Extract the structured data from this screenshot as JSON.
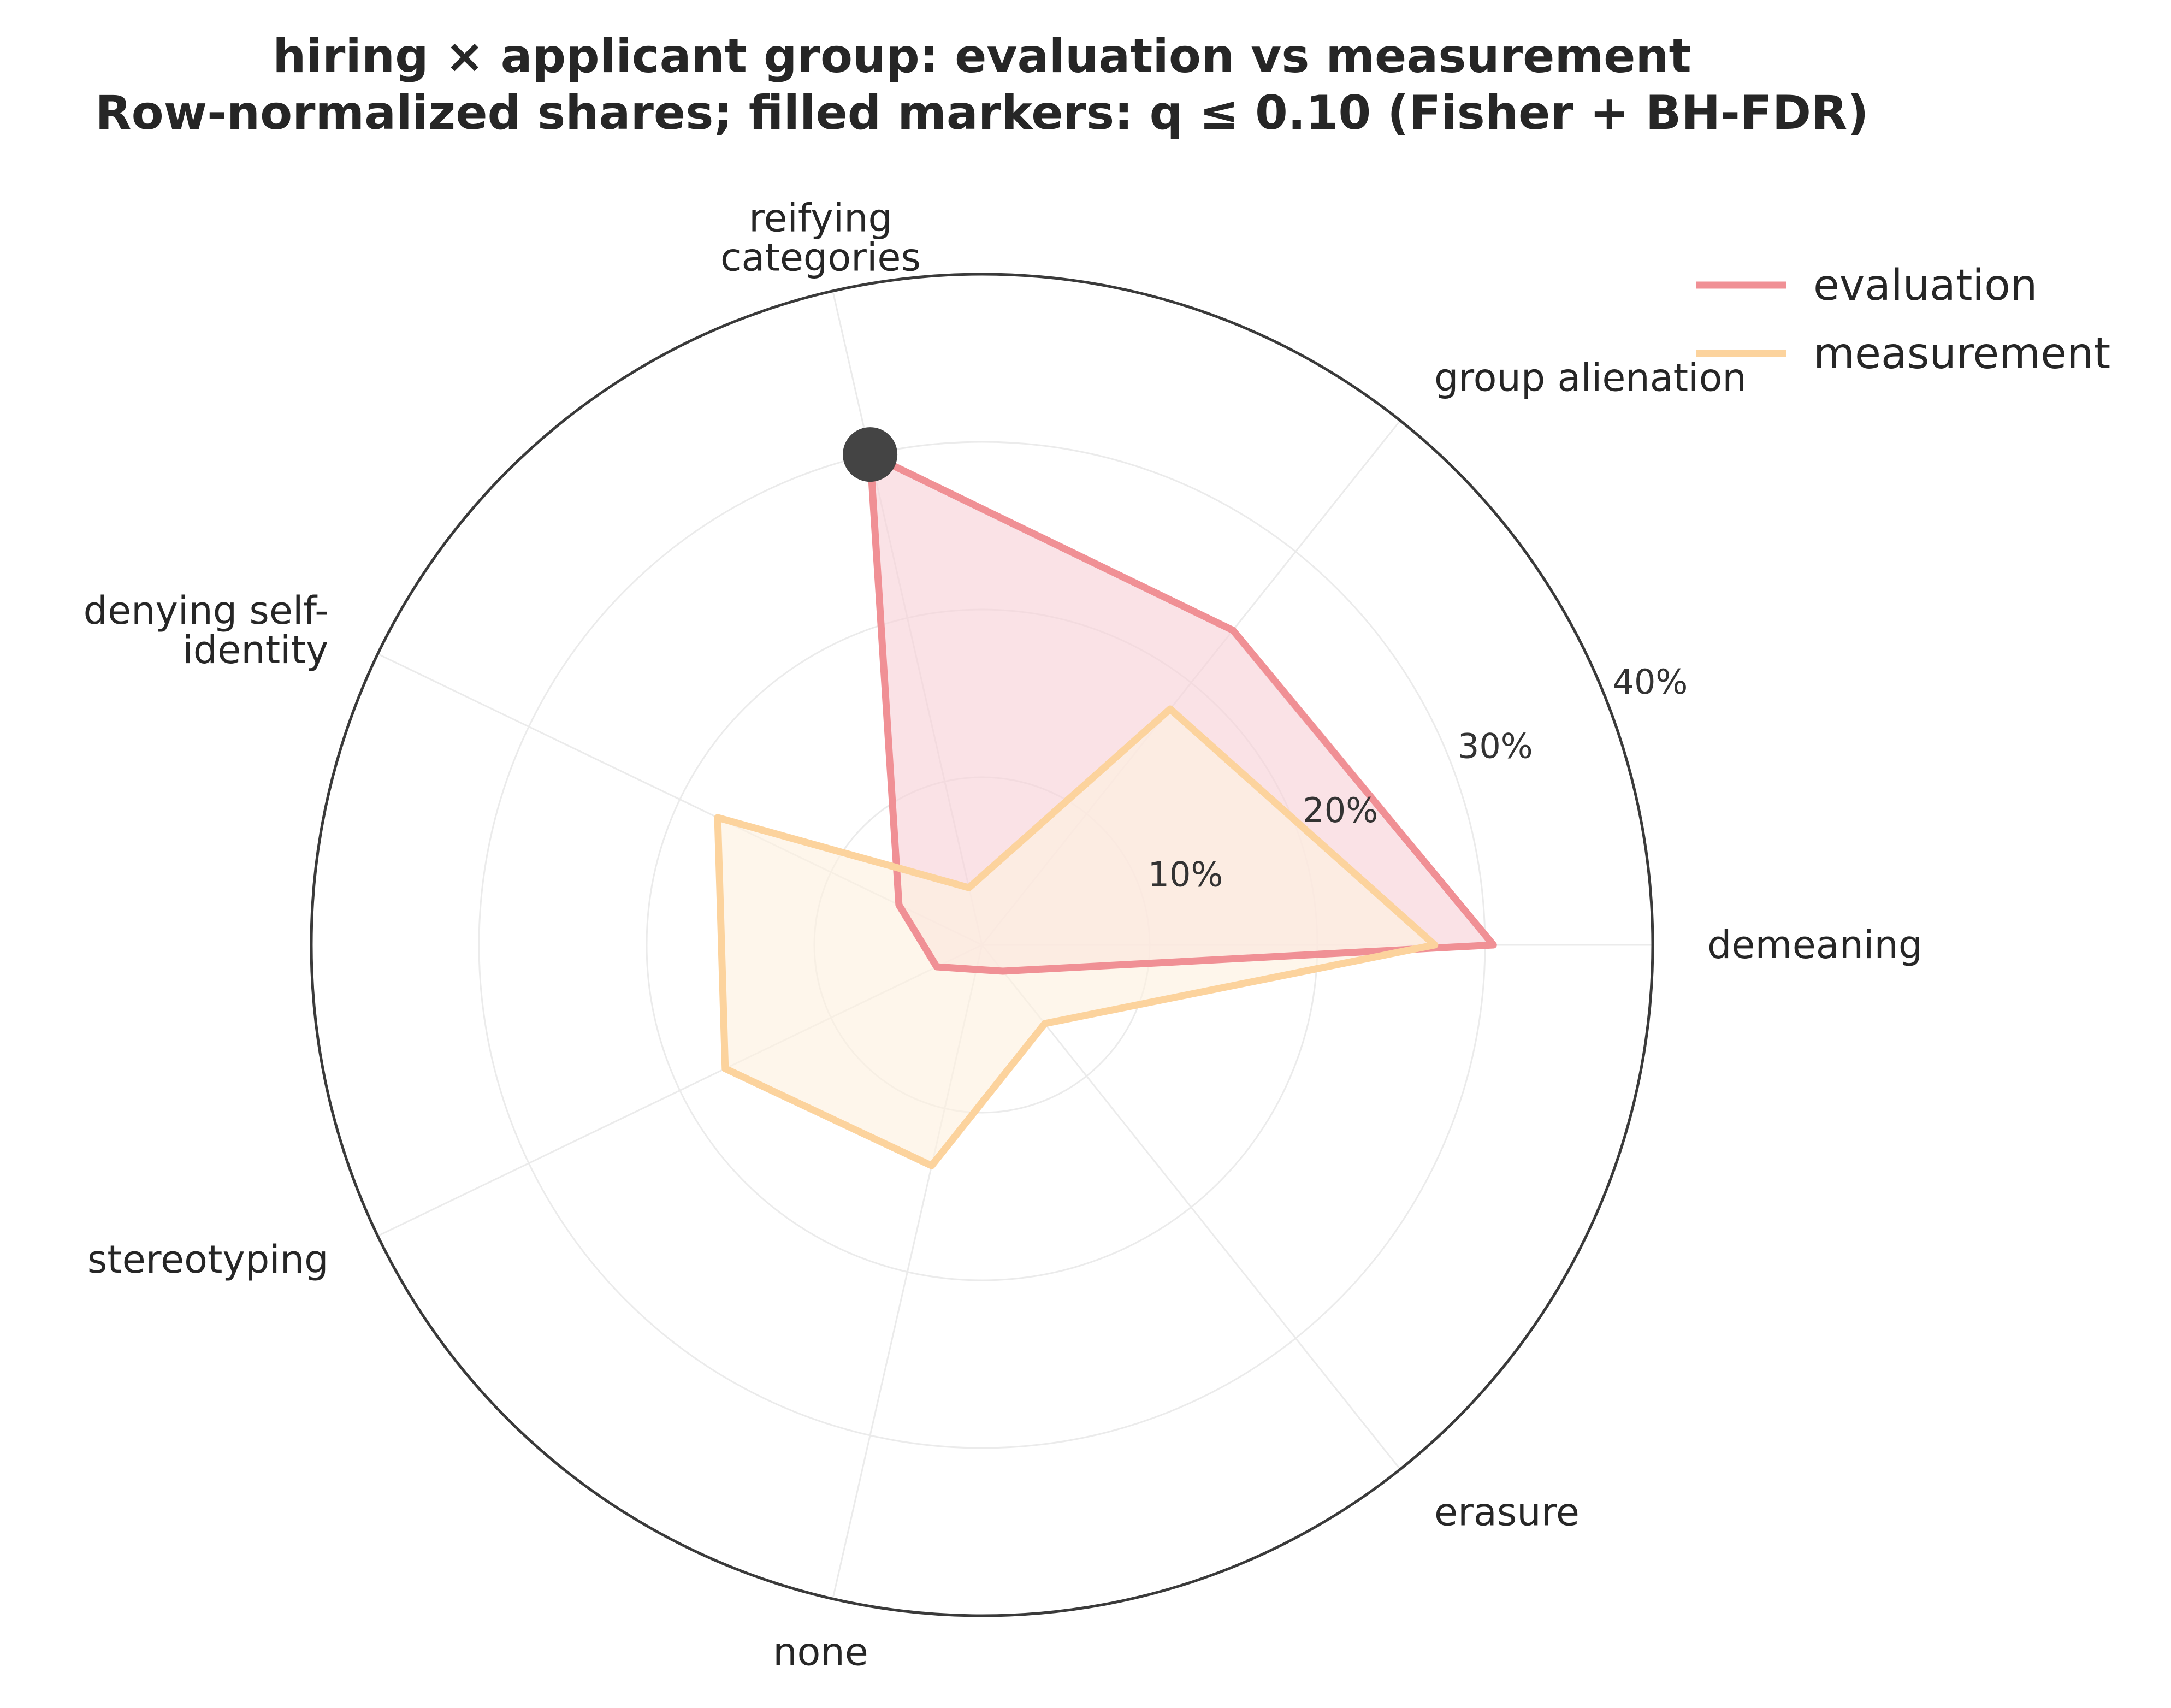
{
  "chart_data": {
    "type": "radar",
    "title": "hiring × applicant group: evaluation vs measurement",
    "subtitle": "Row-normalized shares; filled markers: q ≤ 0.10 (Fisher + BH-FDR)",
    "categories": [
      "demeaning",
      "group alienation",
      "reifying categories",
      "denying self-identity",
      "stereotyping",
      "none",
      "erasure"
    ],
    "category_display": [
      [
        "demeaning"
      ],
      [
        "group alienation"
      ],
      [
        "reifying",
        "categories"
      ],
      [
        "denying self-",
        "identity"
      ],
      [
        "stereotyping"
      ],
      [
        "none"
      ],
      [
        "erasure"
      ]
    ],
    "radial_ticks": [
      10,
      20,
      30,
      40
    ],
    "radial_tick_labels": [
      "10%",
      "20%",
      "30%",
      "40%"
    ],
    "rlim": [
      0,
      40
    ],
    "grid": true,
    "legend_position": "top-right",
    "series": [
      {
        "name": "evaluation",
        "color": "#f09095",
        "fill": "#f8d2d8",
        "values": [
          30.5,
          24.0,
          30.0,
          5.5,
          3.0,
          1.5,
          2.0
        ],
        "significant": [
          false,
          false,
          true,
          false,
          false,
          false,
          false
        ]
      },
      {
        "name": "measurement",
        "color": "#fcd39d",
        "fill": "#fdf1e1",
        "values": [
          27.0,
          18.0,
          3.5,
          17.5,
          17.0,
          13.5,
          6.0
        ],
        "significant": [
          false,
          false,
          false,
          false,
          false,
          false,
          false
        ]
      }
    ],
    "marker_color": "#444444"
  }
}
